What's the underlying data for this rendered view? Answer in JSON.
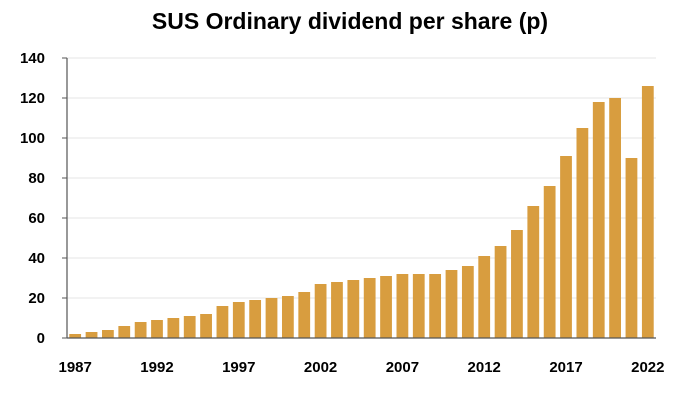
{
  "chart_data": {
    "type": "bar",
    "title": "SUS Ordinary dividend per share (p)",
    "xlabel": "",
    "ylabel": "",
    "ylim": [
      0,
      140
    ],
    "yticks": [
      0,
      20,
      40,
      60,
      80,
      100,
      120,
      140
    ],
    "xtick_labels": [
      "1987",
      "1992",
      "1997",
      "2002",
      "2007",
      "2012",
      "2017",
      "2022"
    ],
    "categories": [
      "1987",
      "1988",
      "1989",
      "1990",
      "1991",
      "1992",
      "1993",
      "1994",
      "1995",
      "1996",
      "1997",
      "1998",
      "1999",
      "2000",
      "2001",
      "2002",
      "2003",
      "2004",
      "2005",
      "2006",
      "2007",
      "2008",
      "2009",
      "2010",
      "2011",
      "2012",
      "2013",
      "2014",
      "2015",
      "2016",
      "2017",
      "2018",
      "2019",
      "2020",
      "2021",
      "2022"
    ],
    "values": [
      2,
      3,
      4,
      6,
      8,
      9,
      10,
      11,
      12,
      16,
      18,
      19,
      20,
      21,
      23,
      27,
      28,
      29,
      30,
      31,
      32,
      32,
      32,
      34,
      36,
      41,
      46,
      54,
      66,
      76,
      91,
      105,
      118,
      120,
      90,
      126
    ],
    "grid": true,
    "legend": "none",
    "bar_color": "#D89D3F",
    "grid_color": "#E4E4E4",
    "axis_color": "#555555"
  }
}
